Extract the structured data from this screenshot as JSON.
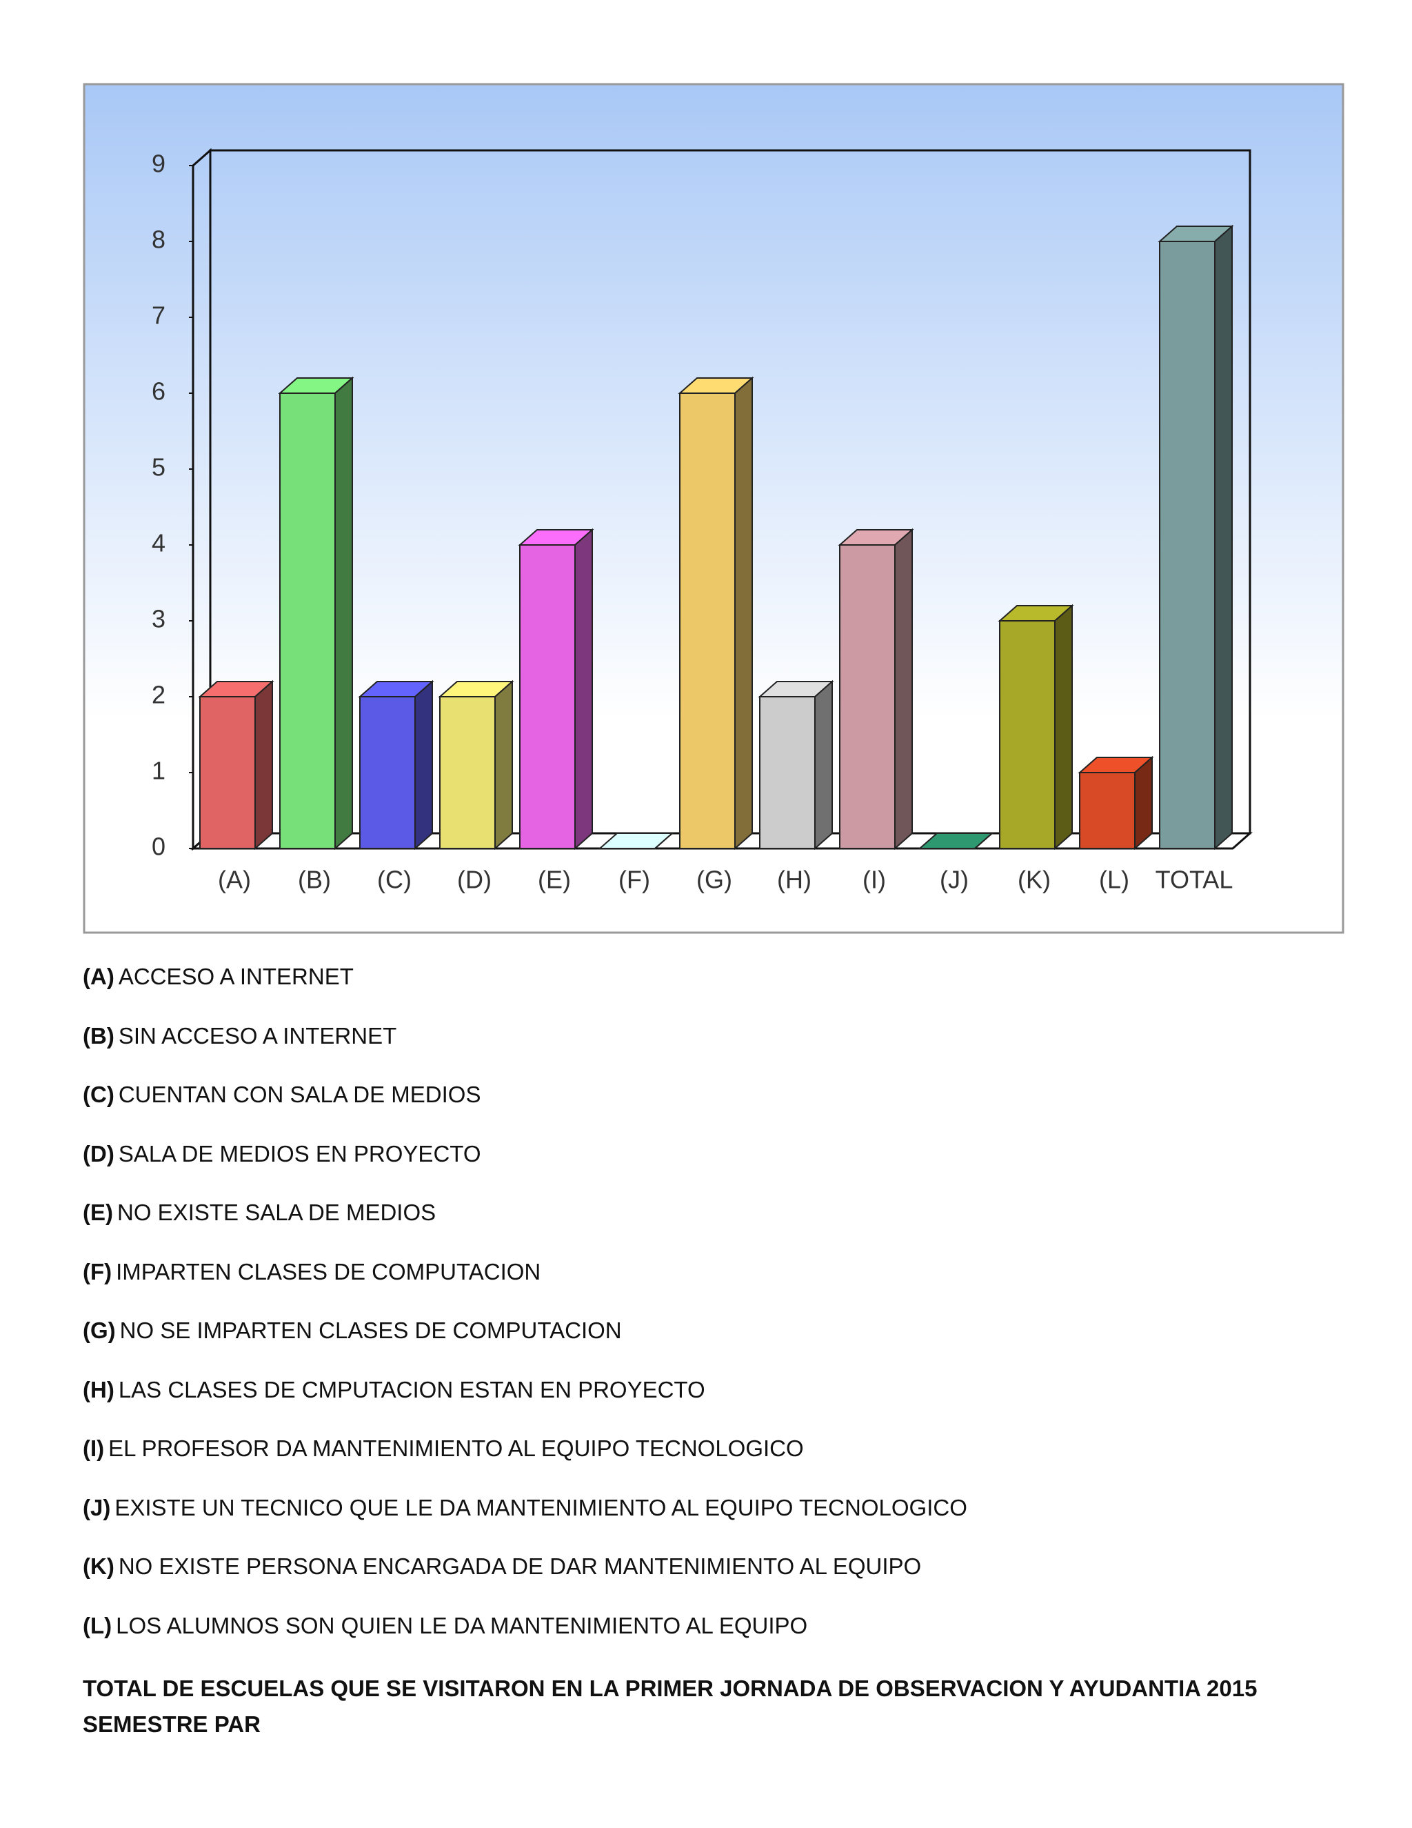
{
  "chart_data": {
    "type": "bar3d",
    "categories": [
      "(A)",
      "(B)",
      "(C)",
      "(D)",
      "(E)",
      "(F)",
      "(G)",
      "(H)",
      "(I)",
      "(J)",
      "(K)",
      "(L)",
      "TOTAL"
    ],
    "values": [
      2,
      6,
      2,
      2,
      4,
      0,
      6,
      2,
      4,
      0,
      3,
      1,
      8
    ],
    "colors": [
      "#e06464",
      "#78e078",
      "#5a5ae6",
      "#e8e070",
      "#e464e4",
      "#c8f4f4",
      "#ecc868",
      "#cccccc",
      "#cc9aa2",
      "#2a8a66",
      "#a8a828",
      "#d84a26",
      "#7a9c9c"
    ],
    "ylim": [
      0,
      9
    ],
    "yticks": [
      0,
      1,
      2,
      3,
      4,
      5,
      6,
      7,
      8,
      9
    ]
  },
  "legend_items": [
    {
      "code": "(A)",
      "text": "ACCESO A INTERNET"
    },
    {
      "code": "(B)",
      "text": "SIN ACCESO A INTERNET"
    },
    {
      "code": "(C)",
      "text": "CUENTAN CON SALA DE MEDIOS"
    },
    {
      "code": "(D)",
      "text": "SALA DE MEDIOS EN PROYECTO"
    },
    {
      "code": "(E)",
      "text": "NO EXISTE SALA DE MEDIOS"
    },
    {
      "code": "(F)",
      "text": "IMPARTEN CLASES DE COMPUTACION"
    },
    {
      "code": "(G)",
      "text": "NO SE IMPARTEN CLASES DE COMPUTACION"
    },
    {
      "code": "(H)",
      "text": "LAS CLASES DE CMPUTACION ESTAN EN PROYECTO"
    },
    {
      "code": "(I)",
      "text": "EL PROFESOR DA MANTENIMIENTO AL EQUIPO TECNOLOGICO"
    },
    {
      "code": "(J)",
      "text": "EXISTE UN TECNICO QUE LE DA MANTENIMIENTO AL EQUIPO TECNOLOGICO"
    },
    {
      "code": "(K)",
      "text": "NO EXISTE PERSONA ENCARGADA DE DAR MANTENIMIENTO AL EQUIPO"
    },
    {
      "code": "(L)",
      "text": "LOS ALUMNOS SON QUIEN LE DA MANTENIMIENTO AL EQUIPO"
    }
  ],
  "footer": "TOTAL DE ESCUELAS QUE SE VISITARON EN LA PRIMER JORNADA DE OBSERVACION Y AYUDANTIA 2015 SEMESTRE PAR"
}
